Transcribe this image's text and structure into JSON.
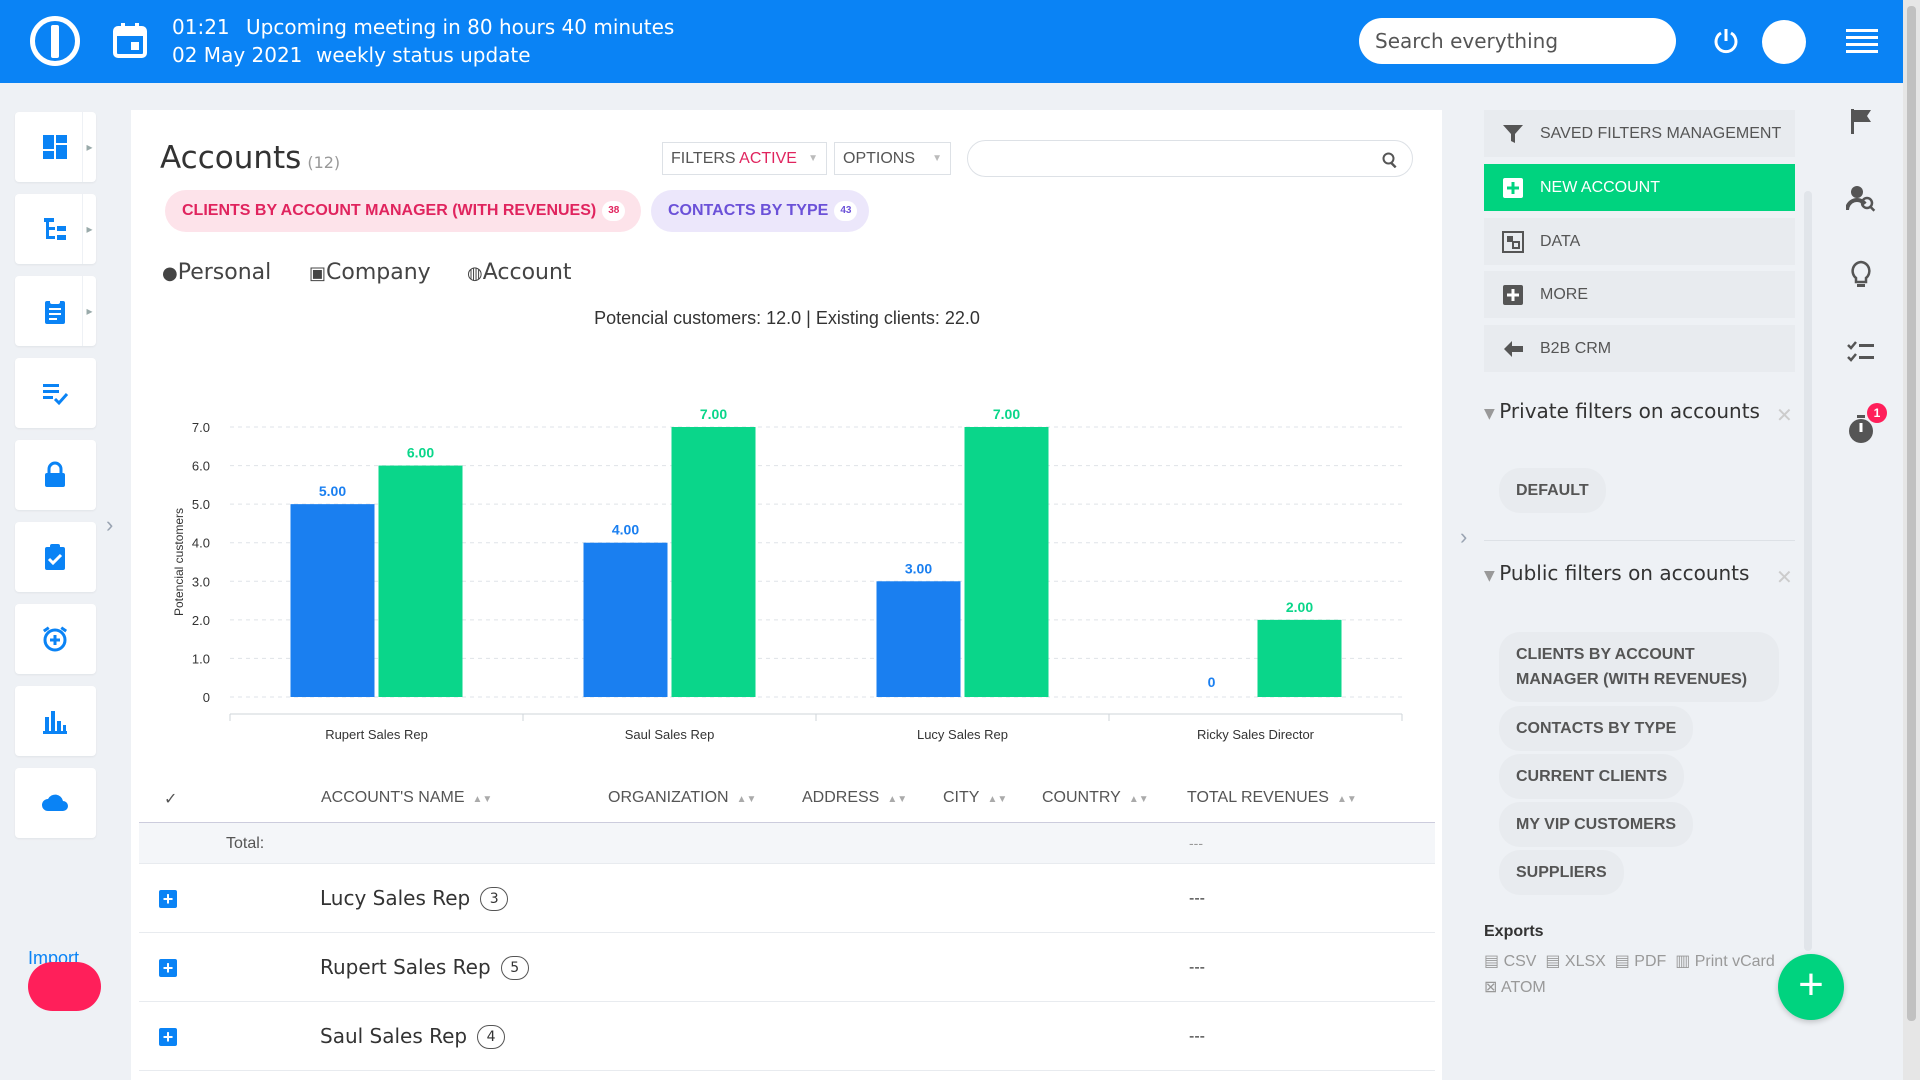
{
  "topbar": {
    "time": "01:21",
    "meeting_text": "Upcoming meeting in 80 hours 40 minutes",
    "date": "02 May 2021",
    "meeting_name": "weekly status update",
    "search_placeholder": "Search everything"
  },
  "sidebar": {
    "items": [
      {
        "icon": "dashboard-icon"
      },
      {
        "icon": "hierarchy-icon"
      },
      {
        "icon": "clipboard-icon"
      },
      {
        "icon": "tasks-icon"
      },
      {
        "icon": "lock-icon"
      },
      {
        "icon": "checklist-icon"
      },
      {
        "icon": "alarm-icon"
      },
      {
        "icon": "bar-chart-icon"
      },
      {
        "icon": "cloud-icon"
      }
    ],
    "import_label": "Import"
  },
  "main": {
    "title": "Accounts",
    "count": "(12)",
    "filters_label": "FILTERS",
    "filters_active": "ACTIVE",
    "options_label": "OPTIONS",
    "pills": [
      {
        "label": "CLIENTS BY ACCOUNT MANAGER (WITH REVENUES)",
        "badge": "38"
      },
      {
        "label": "CONTACTS BY TYPE",
        "badge": "43"
      }
    ],
    "views": [
      "Personal",
      "Company",
      "Account"
    ],
    "chart_summary": "Potencial customers: 12.0 | Existing clients: 22.0"
  },
  "chart_data": {
    "type": "bar",
    "title": "",
    "ylabel": "Potencial customers",
    "xlabel": "",
    "ylim": [
      0,
      7
    ],
    "yticks": [
      "0",
      "1.0",
      "2.0",
      "3.0",
      "4.0",
      "5.0",
      "6.0",
      "7.0"
    ],
    "categories": [
      "Rupert Sales Rep",
      "Saul Sales Rep",
      "Lucy Sales Rep",
      "Ricky Sales Director"
    ],
    "series": [
      {
        "name": "Potencial customers",
        "color": "#1a7ff0",
        "values": [
          5,
          4,
          3,
          0
        ],
        "labels": [
          "5.00",
          "4.00",
          "3.00",
          "0"
        ]
      },
      {
        "name": "Existing clients",
        "color": "#0ad68a",
        "values": [
          6,
          7,
          7,
          2
        ],
        "labels": [
          "6.00",
          "7.00",
          "7.00",
          "2.00"
        ]
      }
    ]
  },
  "table": {
    "columns": [
      "ACCOUNT'S NAME",
      "ORGANIZATION",
      "ADDRESS",
      "CITY",
      "COUNTRY",
      "TOTAL REVENUES"
    ],
    "check_mark": "✓",
    "total_label": "Total:",
    "total_revenue": "---",
    "rows": [
      {
        "name": "Lucy Sales Rep",
        "count": "3",
        "revenue": "---"
      },
      {
        "name": "Rupert Sales Rep",
        "count": "5",
        "revenue": "---"
      },
      {
        "name": "Saul Sales Rep",
        "count": "4",
        "revenue": "---"
      }
    ]
  },
  "right_panel": {
    "buttons": [
      "SAVED FILTERS MANAGEMENT",
      "NEW ACCOUNT",
      "DATA",
      "MORE",
      "B2B CRM"
    ],
    "private_filters_title": "Private filters on accounts",
    "private_filters": [
      "DEFAULT"
    ],
    "public_filters_title": "Public filters on accounts",
    "public_filters": [
      "CLIENTS BY ACCOUNT MANAGER (WITH REVENUES)",
      "CONTACTS BY TYPE",
      "CURRENT CLIENTS",
      "MY VIP CUSTOMERS",
      "SUPPLIERS"
    ],
    "exports_title": "Exports",
    "exports": [
      "CSV",
      "XLSX",
      "PDF",
      "Print vCard",
      "ATOM"
    ]
  },
  "far_right": {
    "timer_badge": "1"
  },
  "colors": {
    "brand": "#0a83f5",
    "green": "#00d37f",
    "pink": "#e0245e"
  }
}
